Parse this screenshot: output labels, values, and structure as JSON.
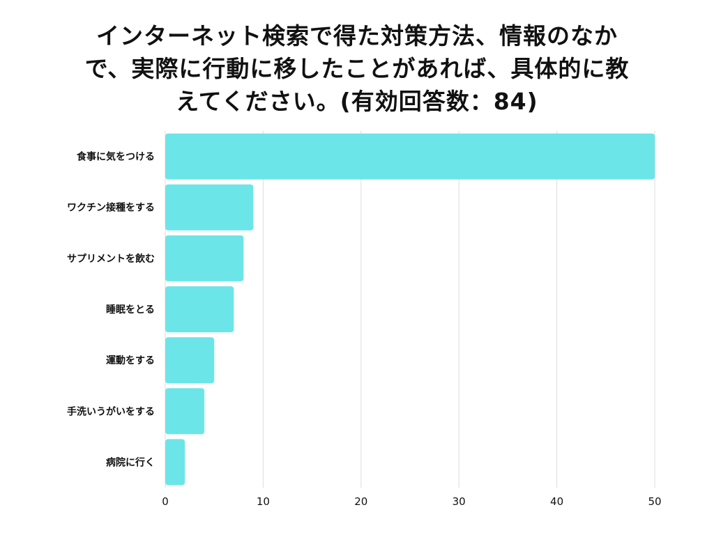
{
  "chart_data": {
    "type": "bar",
    "orientation": "horizontal",
    "title_lines": [
      "インターネット検索で得た対策方法、情報のなか",
      "で、実際に行動に移したことがあれば、具体的に教",
      "えてください。(有効回答数：84)"
    ],
    "categories": [
      "食事に気をつける",
      "ワクチン接種をする",
      "サプリメントを飲む",
      "睡眠をとる",
      "運動をする",
      "手洗いうがいをする",
      "病院に行く"
    ],
    "values": [
      50,
      9,
      8,
      7,
      5,
      4,
      2
    ],
    "xlim": [
      0,
      50
    ],
    "xticks": [
      "0",
      "10",
      "20",
      "30",
      "40",
      "50"
    ],
    "xtick_values": [
      0,
      10,
      20,
      30,
      40,
      50
    ],
    "grid": true,
    "bar_color": "#6ce5e8",
    "grid_color": "#dddddd"
  }
}
